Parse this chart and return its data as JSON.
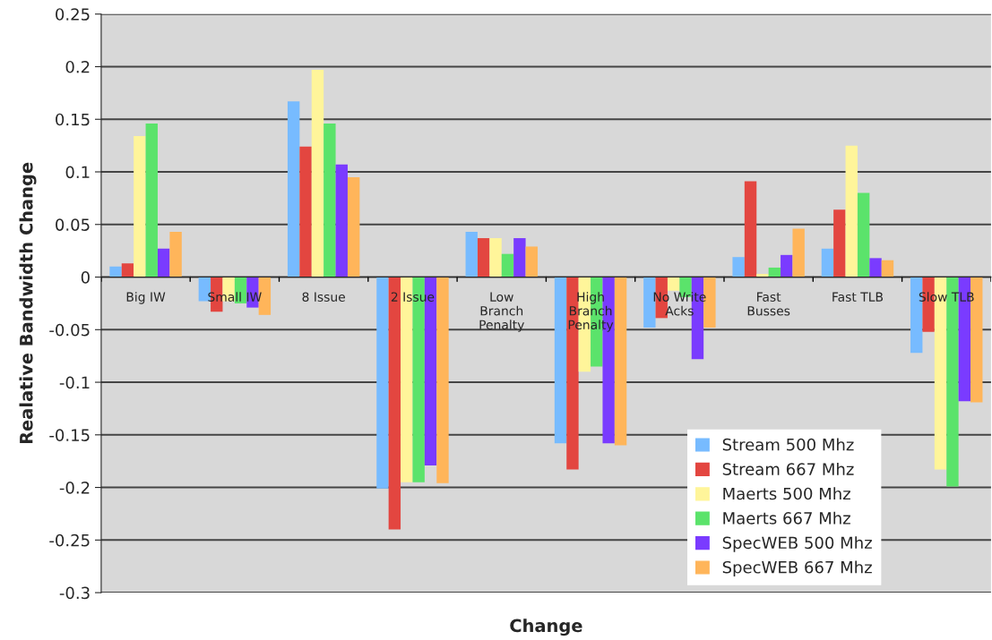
{
  "chart_data": {
    "type": "bar",
    "xlabel": "Change",
    "ylabel": "Realative Bandwidth Change",
    "categories": [
      "Big IW",
      "Small IW",
      "8 Issue",
      "2 Issue",
      "Low Branch Penalty",
      "High Branch Penalty",
      "No Write Acks",
      "Fast Busses",
      "Fast TLB",
      "Slow TLB"
    ],
    "series": [
      {
        "name": "Stream 500 Mhz",
        "color": "#77bbff",
        "values": [
          0.01,
          -0.023,
          0.167,
          -0.201,
          0.043,
          -0.158,
          -0.048,
          0.019,
          0.027,
          -0.072
        ]
      },
      {
        "name": "Stream 667 Mhz",
        "color": "#e34640",
        "values": [
          0.013,
          -0.033,
          0.124,
          -0.24,
          0.037,
          -0.183,
          -0.039,
          0.091,
          0.064,
          -0.052
        ]
      },
      {
        "name": "Maerts 500 Mhz",
        "color": "#fff59a",
        "values": [
          0.134,
          -0.023,
          0.197,
          -0.195,
          0.037,
          -0.09,
          -0.013,
          0.003,
          0.125,
          -0.183
        ]
      },
      {
        "name": "Maerts 667 Mhz",
        "color": "#5be36b",
        "values": [
          0.146,
          -0.025,
          0.146,
          -0.195,
          0.022,
          -0.085,
          -0.019,
          0.009,
          0.08,
          -0.199
        ]
      },
      {
        "name": "SpecWEB 500 Mhz",
        "color": "#7a3bff",
        "values": [
          0.027,
          -0.029,
          0.107,
          -0.179,
          0.037,
          -0.158,
          -0.078,
          0.021,
          0.018,
          -0.118
        ]
      },
      {
        "name": "SpecWEB 667 Mhz",
        "color": "#ffb55a",
        "values": [
          0.043,
          -0.036,
          0.095,
          -0.196,
          0.029,
          -0.16,
          -0.048,
          0.046,
          0.016,
          -0.119
        ]
      }
    ],
    "ylim": [
      -0.3,
      0.25
    ],
    "yticks": [
      -0.3,
      -0.25,
      -0.2,
      -0.15,
      -0.1,
      -0.05,
      0,
      0.05,
      0.1,
      0.15,
      0.2,
      0.25
    ],
    "grid": "y",
    "legend": "bottom right"
  }
}
